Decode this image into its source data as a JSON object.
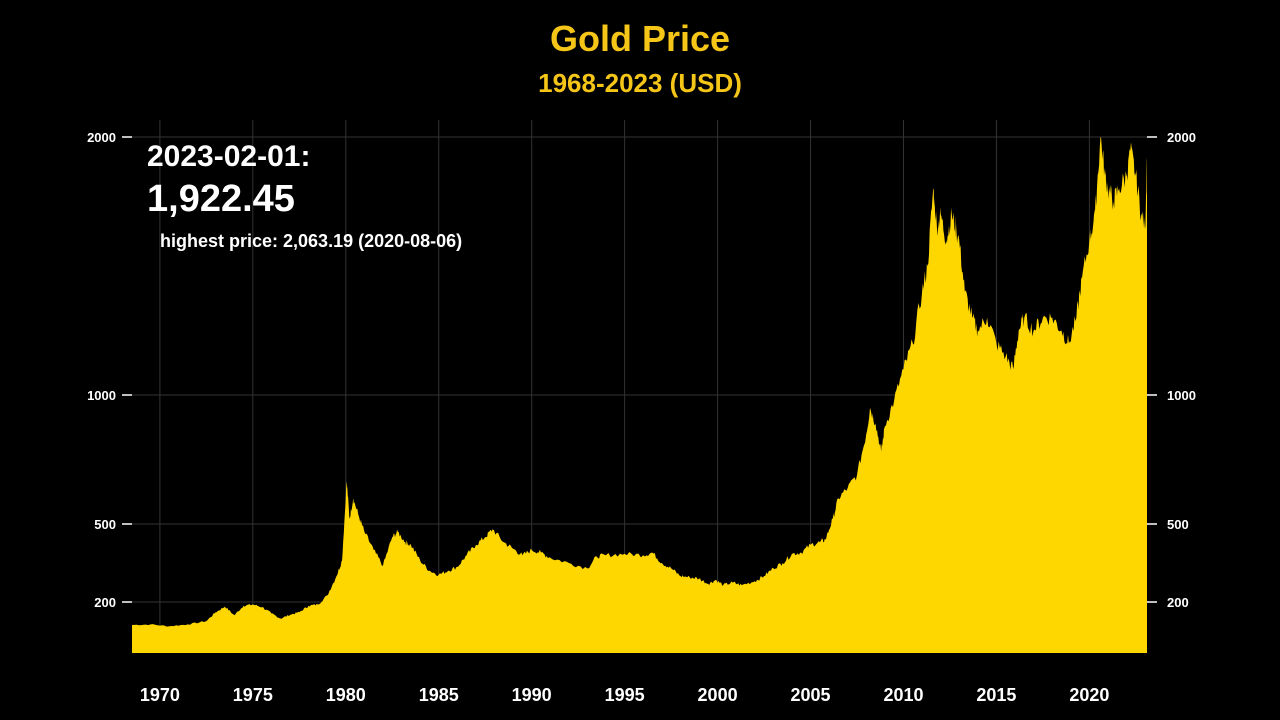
{
  "colors": {
    "background": "#000000",
    "accent": "#F5C518",
    "area": "#FFD700",
    "text": "#FFFFFF",
    "grid": "#333333"
  },
  "readout": {
    "date": "2023-02-01:",
    "value": "1,922.45",
    "highest": "highest price: 2,063.19 (2020-08-06)"
  },
  "chart_data": {
    "type": "area",
    "title": "Gold Price",
    "subtitle": "1968-2023 (USD)",
    "xlabel": "",
    "ylabel": "",
    "grid": true,
    "xlim": [
      1968.5,
      2023.1
    ],
    "ylim": [
      0,
      2070
    ],
    "y_scale": "piecewise",
    "x_ticks": [
      1970,
      1975,
      1980,
      1985,
      1990,
      1995,
      2000,
      2005,
      2010,
      2015,
      2020
    ],
    "y_ticks": [
      200,
      500,
      1000,
      2000
    ],
    "y_tick_sides": [
      "left",
      "right"
    ],
    "series": [
      {
        "x": [
          1968.5,
          1969.5,
          1970.5,
          1971.5,
          1972.5,
          1973.0,
          1973.5,
          1974.0,
          1974.5,
          1975.0,
          1975.5,
          1976.0,
          1976.5,
          1977.0,
          1977.5,
          1978.0,
          1978.5,
          1979.0,
          1979.5,
          1979.8,
          1980.05,
          1980.2,
          1980.4,
          1980.7,
          1981.0,
          1981.5,
          1982.0,
          1982.5,
          1982.8,
          1983.2,
          1983.5,
          1984.0,
          1984.5,
          1985.0,
          1985.5,
          1986.0,
          1986.5,
          1987.0,
          1987.5,
          1987.9,
          1988.5,
          1989.0,
          1989.5,
          1990.0,
          1990.5,
          1991.0,
          1992.0,
          1993.0,
          1993.5,
          1994.0,
          1995.0,
          1996.0,
          1996.5,
          1997.0,
          1997.5,
          1998.0,
          1998.5,
          1999.0,
          1999.5,
          1999.9,
          2000.3,
          2000.8,
          2001.3,
          2002.0,
          2002.5,
          2003.0,
          2003.5,
          2004.0,
          2004.5,
          2005.0,
          2005.5,
          2005.8,
          2006.2,
          2006.5,
          2007.0,
          2007.5,
          2008.0,
          2008.2,
          2008.5,
          2008.8,
          2009.0,
          2009.5,
          2010.0,
          2010.5,
          2011.0,
          2011.3,
          2011.6,
          2011.8,
          2012.0,
          2012.3,
          2012.6,
          2012.8,
          2013.0,
          2013.3,
          2013.7,
          2014.0,
          2014.5,
          2015.0,
          2015.5,
          2015.9,
          2016.2,
          2016.5,
          2017.0,
          2017.5,
          2018.0,
          2018.5,
          2018.9,
          2019.3,
          2019.6,
          2020.0,
          2020.3,
          2020.6,
          2020.85,
          2021.0,
          2021.3,
          2021.6,
          2022.0,
          2022.2,
          2022.5,
          2022.8,
          2023.0,
          2023.1
        ],
        "y": [
          110,
          112,
          105,
          112,
          125,
          160,
          182,
          148,
          185,
          190,
          180,
          155,
          135,
          150,
          160,
          185,
          190,
          225,
          300,
          360,
          665,
          520,
          600,
          530,
          470,
          400,
          340,
          450,
          470,
          430,
          420,
          360,
          320,
          305,
          320,
          335,
          380,
          420,
          450,
          480,
          430,
          405,
          380,
          400,
          390,
          370,
          350,
          330,
          375,
          380,
          385,
          380,
          390,
          350,
          330,
          300,
          295,
          290,
          270,
          285,
          265,
          275,
          265,
          280,
          300,
          330,
          350,
          385,
          390,
          420,
          430,
          440,
          520,
          600,
          640,
          690,
          850,
          950,
          890,
          780,
          880,
          980,
          1100,
          1200,
          1400,
          1500,
          1800,
          1650,
          1700,
          1600,
          1700,
          1650,
          1600,
          1400,
          1300,
          1250,
          1300,
          1200,
          1150,
          1100,
          1250,
          1300,
          1250,
          1300,
          1300,
          1250,
          1200,
          1300,
          1450,
          1600,
          1700,
          2000,
          1850,
          1800,
          1750,
          1800,
          1850,
          1950,
          1850,
          1700,
          1650,
          1922
        ]
      }
    ]
  }
}
